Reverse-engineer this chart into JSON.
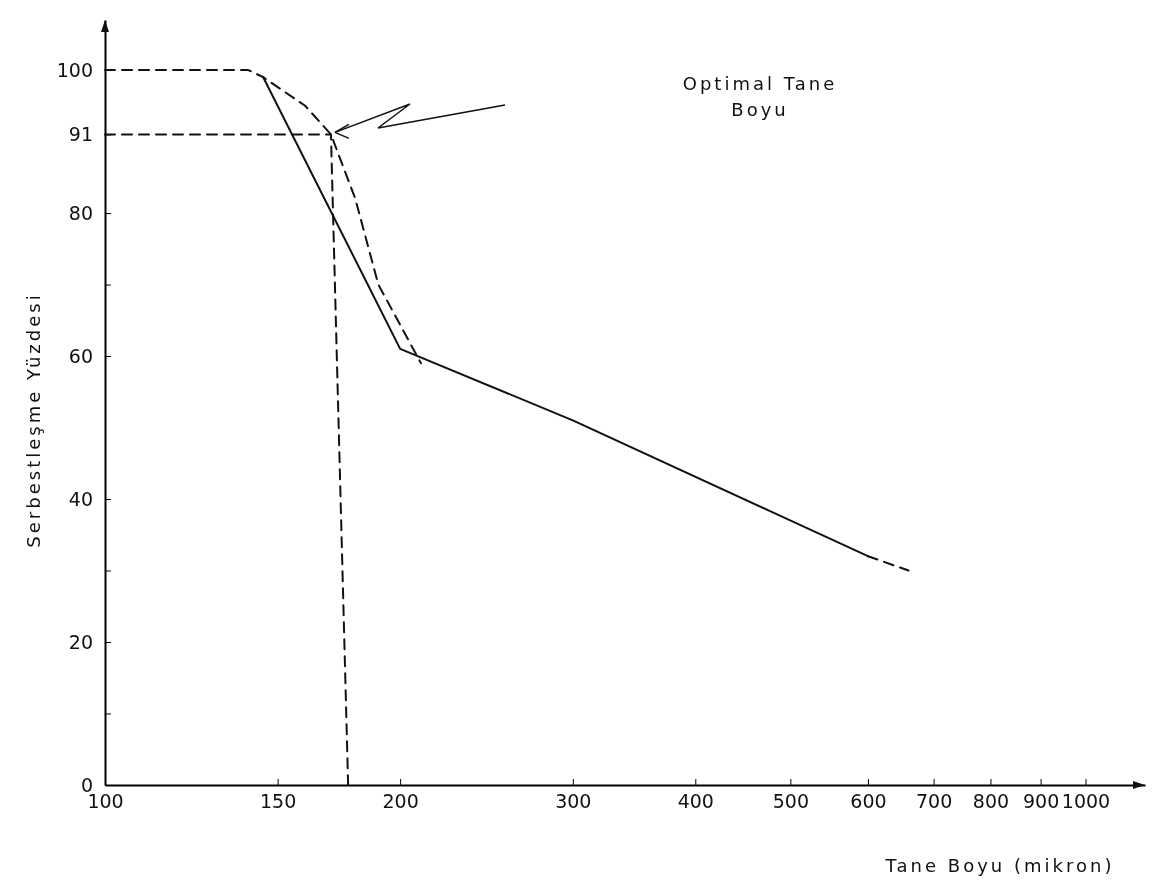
{
  "chart_data": {
    "type": "line",
    "xlabel": "Tane Boyu (mikron)",
    "ylabel": "Serbestleşme Yüzdesi",
    "log": "x",
    "xlim": [
      100,
      1150
    ],
    "xticks": [
      100,
      150,
      200,
      300,
      400,
      500,
      600,
      700,
      800,
      900,
      1000
    ],
    "ylim": [
      0,
      107
    ],
    "yticks": [
      0,
      {
        "value": 10,
        "label": null
      },
      20,
      {
        "value": 30,
        "label": null
      },
      40,
      60,
      {
        "value": 70,
        "label": null
      },
      80,
      91,
      100
    ],
    "grid": false,
    "series": [
      {
        "color": "#111111",
        "line_style": "solid",
        "x": [
          145,
          200,
          300,
          600
        ],
        "values": [
          99,
          61,
          51,
          32
        ]
      },
      {
        "color": "#111111",
        "line_style": "dashed",
        "x": [
          600,
          660
        ],
        "values": [
          32,
          30
        ]
      },
      {
        "color": "#111111",
        "line_style": "dashed",
        "x": [
          100,
          140,
          145,
          160,
          170,
          180,
          190,
          210
        ],
        "values": [
          100,
          100,
          99,
          95,
          91,
          82,
          70,
          59
        ]
      },
      {
        "color": "#111111",
        "line_style": "dashed",
        "x": [
          100,
          170,
          177
        ],
        "values": [
          91,
          91,
          0
        ]
      }
    ],
    "annotations": [
      "Optimal Tane\nBoyu"
    ]
  }
}
